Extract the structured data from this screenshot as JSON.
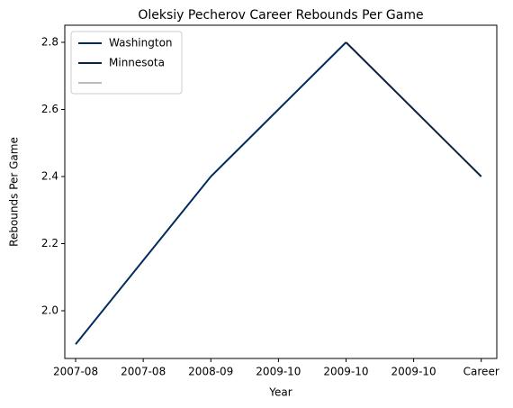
{
  "chart_data": {
    "type": "line",
    "title": "Oleksiy Pecherov Career Rebounds Per Game",
    "x_label": "Year",
    "y_label": "Rebounds Per Game",
    "xlim": [
      -0.16,
      6.23
    ],
    "xticks": [
      {
        "value": 0,
        "label": "2007-08"
      },
      {
        "value": 1,
        "label": "2007-08"
      },
      {
        "value": 2,
        "label": "2008-09"
      },
      {
        "value": 3,
        "label": "2009-10"
      },
      {
        "value": 4,
        "label": "2009-10"
      },
      {
        "value": 5,
        "label": "2009-10"
      },
      {
        "value": 6,
        "label": "Career"
      }
    ],
    "ylim": [
      1.8577,
      2.851
    ],
    "yticks": [
      {
        "value": 2,
        "label": "2.0"
      },
      2.2,
      2.4,
      2.6,
      2.8
    ],
    "legend": "upper left",
    "series": [
      {
        "name": "Washington",
        "color": "#002b5c",
        "x": [
          0,
          2,
          4
        ],
        "values": [
          1.9,
          2.4,
          2.8
        ]
      },
      {
        "name": "Minnesota",
        "color": "#0c2340",
        "x": [
          4,
          6
        ],
        "values": [
          2.8,
          2.4
        ]
      }
    ]
  }
}
